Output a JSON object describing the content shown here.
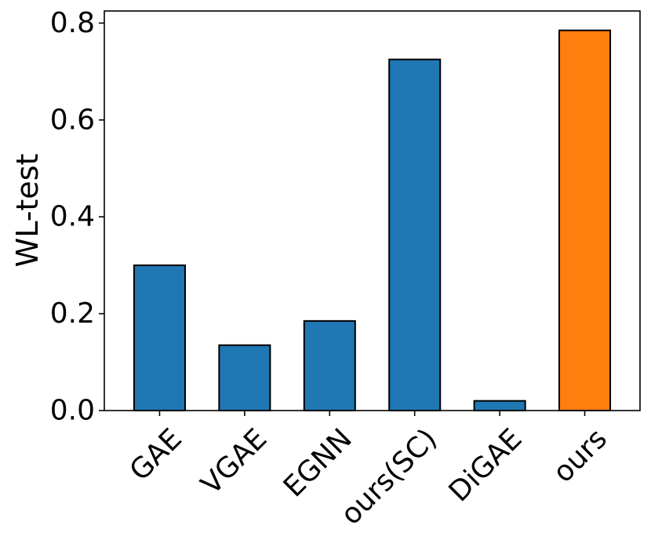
{
  "chart_data": {
    "type": "bar",
    "title": "",
    "xlabel": "",
    "ylabel": "WL-test",
    "ylim": [
      0,
      0.825
    ],
    "yticks": [
      "0.0",
      "0.2",
      "0.4",
      "0.6",
      "0.8"
    ],
    "grid": false,
    "categories": [
      "GAE",
      "VGAE",
      "EGNN",
      "ours(SC)",
      "DiGAE",
      "ours"
    ],
    "values": [
      0.3,
      0.135,
      0.185,
      0.725,
      0.02,
      0.785
    ],
    "colors": [
      "#1f77b4",
      "#1f77b4",
      "#1f77b4",
      "#1f77b4",
      "#1f77b4",
      "#ff7f0e"
    ]
  }
}
